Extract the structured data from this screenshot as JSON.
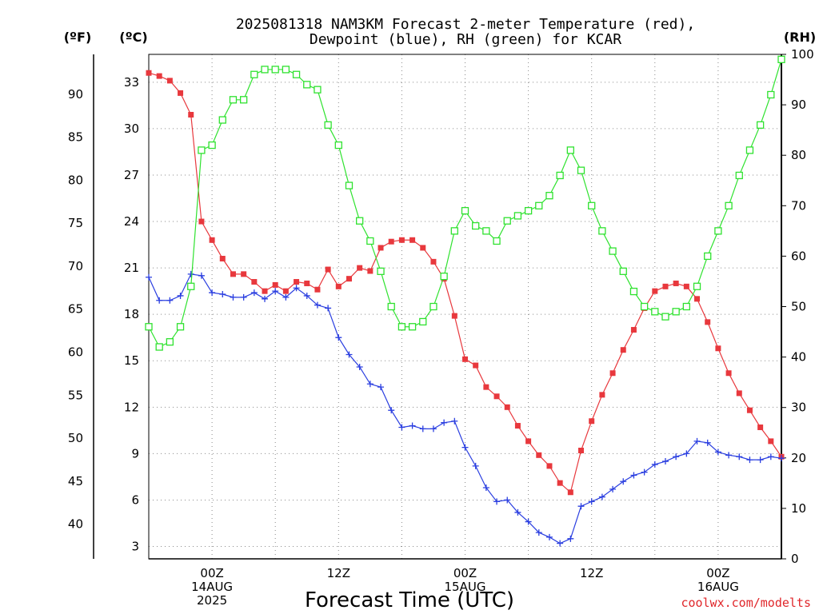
{
  "chart_data": {
    "type": "line",
    "title_line1": "2025081318 NAM3KM Forecast 2-meter Temperature (red),",
    "title_line2": "Dewpoint (blue), RH (green) for KCAR",
    "unit_f": "(ºF)",
    "unit_c": "(ºC)",
    "unit_rh": "(RH)",
    "xlabel": "Forecast Time (UTC)",
    "credit": "coolwx.com/modelts",
    "x_hours_range": [
      -5,
      55
    ],
    "c_axis": {
      "range": [
        2.2,
        34.8
      ],
      "ticks": [
        "3",
        "6",
        "9",
        "12",
        "15",
        "18",
        "21",
        "24",
        "27",
        "30",
        "33"
      ]
    },
    "f_axis": {
      "ticks": [
        "40",
        "45",
        "50",
        "55",
        "60",
        "65",
        "70",
        "75",
        "80",
        "85",
        "90"
      ]
    },
    "rh_axis": {
      "range": [
        0,
        100
      ],
      "ticks": [
        "0",
        "10",
        "20",
        "30",
        "40",
        "50",
        "60",
        "70",
        "80",
        "90",
        "100"
      ]
    },
    "x_ticks": [
      {
        "hour": 1,
        "lines": [
          "00Z",
          "14AUG",
          "2025"
        ]
      },
      {
        "hour": 13,
        "lines": [
          "12Z"
        ]
      },
      {
        "hour": 25,
        "lines": [
          "00Z",
          "15AUG"
        ]
      },
      {
        "hour": 37,
        "lines": [
          "12Z"
        ]
      },
      {
        "hour": 49,
        "lines": [
          "00Z",
          "16AUG"
        ]
      }
    ],
    "grid": "dotted",
    "series": [
      {
        "name": "Temperature (°C)",
        "color": "#e8383d",
        "marker": "filled-square",
        "axis": "c",
        "x_start_hour": -5,
        "values": [
          33.6,
          33.4,
          33.1,
          32.3,
          30.9,
          24.0,
          22.8,
          21.6,
          20.6,
          20.6,
          20.1,
          19.5,
          19.9,
          19.5,
          20.1,
          20.0,
          19.6,
          20.9,
          19.8,
          20.3,
          21.0,
          20.8,
          22.3,
          22.7,
          22.8,
          22.8,
          22.3,
          21.4,
          20.3,
          17.9,
          15.1,
          14.7,
          13.3,
          12.7,
          12.0,
          10.8,
          9.8,
          8.9,
          8.2,
          7.1,
          6.5,
          9.2,
          11.1,
          12.8,
          14.2,
          15.7,
          17.0,
          18.4,
          19.5,
          19.8,
          20.0,
          19.8,
          19.0,
          17.5,
          15.8,
          14.2,
          12.9,
          11.8,
          10.7,
          9.8,
          8.8
        ]
      },
      {
        "name": "Dewpoint (°C)",
        "color": "#2a3ee0",
        "marker": "plus",
        "axis": "c",
        "x_start_hour": -5,
        "values": [
          20.4,
          18.9,
          18.9,
          19.2,
          20.6,
          20.5,
          19.4,
          19.3,
          19.1,
          19.1,
          19.4,
          19.0,
          19.5,
          19.1,
          19.7,
          19.2,
          18.6,
          18.4,
          16.5,
          15.4,
          14.6,
          13.5,
          13.3,
          11.8,
          10.7,
          10.8,
          10.6,
          10.6,
          11.0,
          11.1,
          9.4,
          8.2,
          6.8,
          5.9,
          6.0,
          5.2,
          4.6,
          3.9,
          3.6,
          3.2,
          3.5,
          5.6,
          5.9,
          6.2,
          6.7,
          7.2,
          7.6,
          7.8,
          8.3,
          8.5,
          8.8,
          9.0,
          9.8,
          9.7,
          9.1,
          8.9,
          8.8,
          8.6,
          8.6,
          8.8,
          8.7
        ]
      },
      {
        "name": "RH (%)",
        "color": "#2fe22f",
        "marker": "open-square",
        "axis": "rh",
        "x_start_hour": -5,
        "values": [
          46,
          42,
          43,
          46,
          54,
          81,
          82,
          87,
          91,
          91,
          96,
          97,
          97,
          97,
          96,
          94,
          93,
          86,
          82,
          74,
          67,
          63,
          57,
          50,
          46,
          46,
          47,
          50,
          56,
          65,
          69,
          66,
          65,
          63,
          67,
          68,
          69,
          70,
          72,
          76,
          81,
          77,
          70,
          65,
          61,
          57,
          53,
          50,
          49,
          48,
          49,
          50,
          54,
          60,
          65,
          70,
          76,
          81,
          86,
          92,
          99
        ]
      }
    ]
  }
}
